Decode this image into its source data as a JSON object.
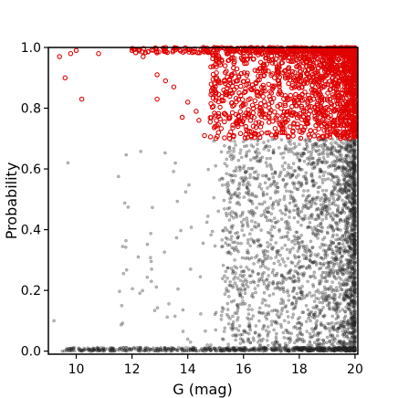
{
  "chart_data": {
    "type": "scatter",
    "xlabel": "G (mag)",
    "ylabel": "Probability",
    "xlim": [
      9,
      20.1
    ],
    "ylim": [
      -0.01,
      1.0
    ],
    "x_ticks": [
      10,
      12,
      14,
      16,
      18,
      20
    ],
    "y_ticks": [
      0.0,
      0.2,
      0.4,
      0.6,
      0.8,
      1.0
    ],
    "grid": false,
    "legend": "none",
    "series": [
      {
        "marker": "small filled circle, dark gray, semi-transparent",
        "color": "#333333",
        "probability_range": [
          0.0,
          0.7
        ],
        "points": [
          [
            9.2,
            0.1
          ],
          [
            9.7,
            0.62
          ],
          [
            9.5,
            0.0
          ],
          [
            10.2,
            0.0
          ],
          [
            10.5,
            0.0
          ],
          [
            11.0,
            0.0
          ],
          [
            11.3,
            0.0
          ],
          [
            11.8,
            0.0
          ],
          [
            12.3,
            0.0
          ],
          [
            12.6,
            0.0
          ],
          [
            13.2,
            0.0
          ],
          [
            13.8,
            0.0
          ],
          [
            14.3,
            0.0
          ],
          [
            14.6,
            0.0
          ],
          [
            15.0,
            0.61
          ],
          [
            15.0,
            0.07
          ],
          [
            14.1,
            0.27
          ],
          [
            13.4,
            0.0
          ],
          [
            14.7,
            0.02
          ],
          [
            16.0,
            0.69
          ],
          [
            16.3,
            0.4
          ],
          [
            15.8,
            0.24
          ],
          [
            15.5,
            0.35
          ],
          [
            16.6,
            0.3
          ],
          [
            17.0,
            0.55
          ],
          [
            17.2,
            0.12
          ],
          [
            17.5,
            0.45
          ],
          [
            17.8,
            0.2
          ],
          [
            18.0,
            0.6
          ],
          [
            18.2,
            0.33
          ],
          [
            18.4,
            0.1
          ],
          [
            18.6,
            0.5
          ],
          [
            18.8,
            0.25
          ],
          [
            19.0,
            0.65
          ],
          [
            19.2,
            0.05
          ],
          [
            19.4,
            0.4
          ],
          [
            19.6,
            0.55
          ],
          [
            19.8,
            0.15
          ],
          [
            19.9,
            0.3
          ],
          [
            20.0,
            0.68
          ]
        ]
      },
      {
        "marker": "open circle, red",
        "color": "#e00000",
        "probability_range": [
          0.7,
          1.0
        ],
        "points": [
          [
            9.4,
            0.97
          ],
          [
            9.8,
            0.98
          ],
          [
            9.6,
            0.9
          ],
          [
            10.0,
            0.99
          ],
          [
            10.2,
            0.83
          ],
          [
            10.8,
            0.98
          ],
          [
            12.0,
            0.99
          ],
          [
            12.4,
            0.97
          ],
          [
            12.9,
            0.91
          ],
          [
            12.9,
            0.83
          ],
          [
            13.2,
            0.89
          ],
          [
            13.5,
            0.87
          ],
          [
            13.8,
            0.77
          ],
          [
            14.0,
            0.82
          ],
          [
            14.3,
            0.79
          ],
          [
            14.4,
            0.76
          ],
          [
            14.6,
            0.71
          ],
          [
            15.1,
            0.72
          ],
          [
            15.5,
            0.7
          ],
          [
            15.8,
            0.74
          ],
          [
            16.2,
            0.78
          ],
          [
            16.6,
            0.8
          ],
          [
            17.0,
            0.85
          ],
          [
            17.4,
            0.75
          ],
          [
            17.8,
            0.9
          ],
          [
            18.1,
            0.72
          ],
          [
            18.4,
            0.95
          ],
          [
            18.8,
            0.82
          ],
          [
            19.2,
            0.9
          ],
          [
            19.6,
            0.98
          ],
          [
            20.0,
            0.88
          ]
        ]
      }
    ]
  }
}
